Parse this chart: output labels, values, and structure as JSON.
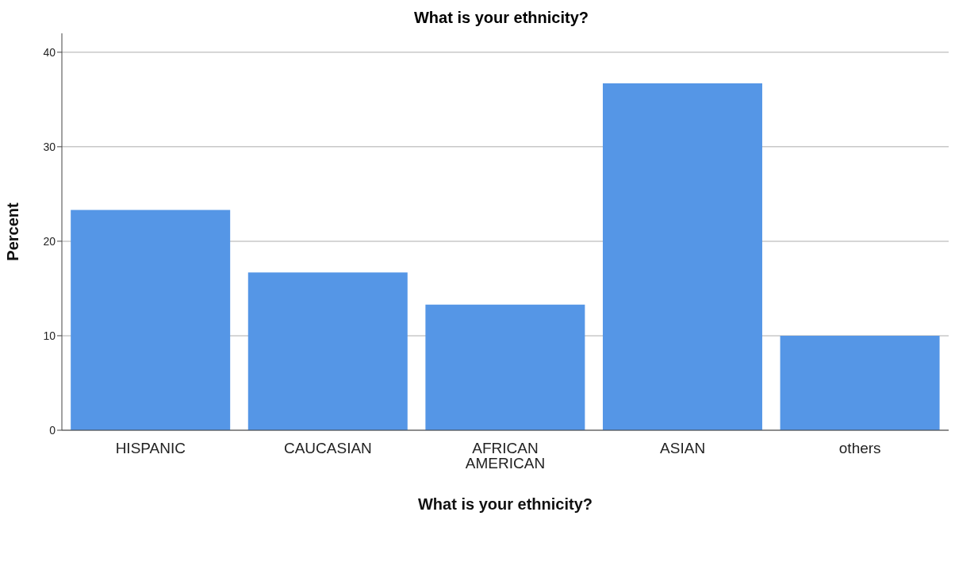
{
  "chart_data": {
    "type": "bar",
    "title": "What is your ethnicity?",
    "xlabel": "What is your ethnicity?",
    "ylabel": "Percent",
    "categories": [
      "HISPANIC",
      "CAUCASIAN",
      "AFRICAN AMERICAN",
      "ASIAN",
      "others"
    ],
    "values": [
      23.3,
      16.7,
      13.3,
      36.7,
      10.0
    ],
    "color": "#5596e6",
    "ylim": [
      0,
      42
    ],
    "yticks": [
      0,
      10,
      20,
      30,
      40
    ],
    "grid": "y"
  }
}
